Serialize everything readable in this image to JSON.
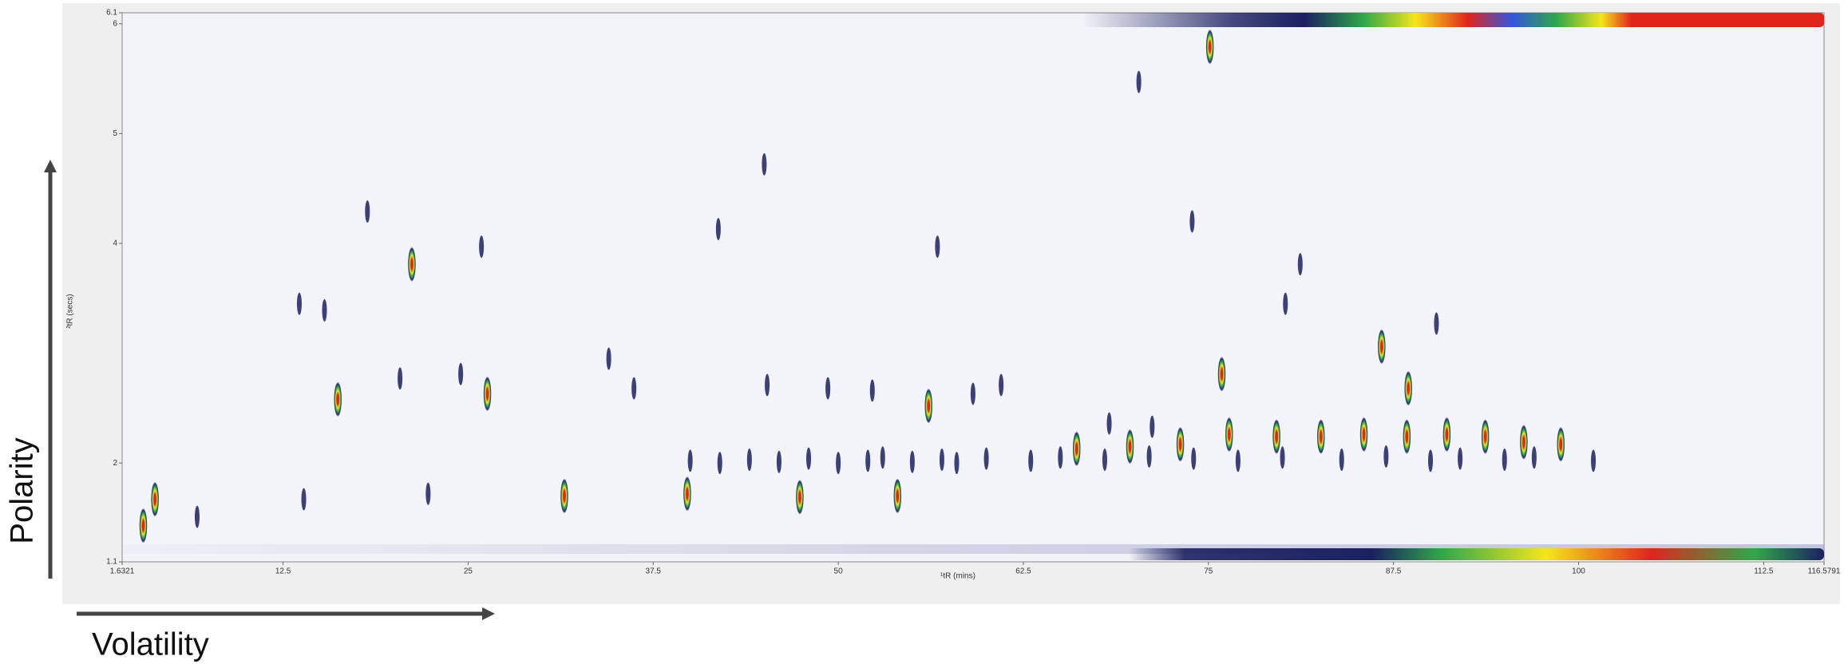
{
  "chart_data": {
    "type": "scatter",
    "x_label": "¹tR (mins)",
    "y_label": "²tR (secs)",
    "annotations": [
      "Polarity",
      "Volatility"
    ],
    "xlim": [
      1.6321,
      116.5791
    ],
    "ylim": [
      1.1,
      6.1
    ],
    "xticks": [
      1.6321,
      12.5,
      25,
      37.5,
      50,
      62.5,
      75,
      87.5,
      100,
      112.5,
      116.5791
    ],
    "yticks": [
      1.1,
      2,
      4,
      5,
      6,
      6.1
    ],
    "grid": false,
    "series": [
      {
        "color": "#1b2060",
        "x": [
          13.6,
          15.3,
          18.2,
          22.3,
          25.9,
          34.5,
          45.0,
          70.3,
          61.0,
          73.9,
          81.2,
          90.4,
          80.2,
          56.7,
          41.9,
          13.9,
          6.7,
          36.2,
          45.2,
          49.3,
          52.3,
          59.1,
          24.5,
          20.4,
          68.3,
          71.2,
          40,
          42,
          44,
          46,
          48,
          50,
          52,
          53,
          55,
          57,
          58,
          60,
          63,
          65,
          68,
          71,
          74,
          77,
          80,
          84,
          87,
          90,
          92,
          95,
          97,
          101
        ],
        "values": [
          3.45,
          3.39,
          4.29,
          1.72,
          3.97,
          2.95,
          4.72,
          5.47,
          2.71,
          4.2,
          3.81,
          3.27,
          3.45,
          3.97,
          4.13,
          1.67,
          1.51,
          2.68,
          2.71,
          2.68,
          2.66,
          2.63,
          2.81,
          2.77,
          2.36,
          2.33,
          2.02,
          2.0,
          2.03,
          2.01,
          2.04,
          2.0,
          2.02,
          2.05,
          2.01,
          2.03,
          2.0,
          2.04,
          2.02,
          2.05,
          2.03,
          2.06,
          2.04,
          2.02,
          2.05,
          2.03,
          2.06,
          2.02,
          2.04,
          2.03,
          2.05,
          2.02
        ]
      },
      {
        "color": "#e0261b",
        "x": [
          3.06,
          3.85,
          16.2,
          21.2,
          26.3,
          31.5,
          39.8,
          47.4,
          54.0,
          56.1,
          75.1,
          75.9,
          76.4,
          79.6,
          82.6,
          85.5,
          86.7,
          88.5,
          88.4,
          91.1,
          93.7,
          96.3,
          98.8,
          73.1,
          69.7,
          66.1
        ],
        "values": [
          1.43,
          1.67,
          2.58,
          3.81,
          2.63,
          1.7,
          1.72,
          1.69,
          1.7,
          2.52,
          5.79,
          2.81,
          2.26,
          2.24,
          2.24,
          2.26,
          3.06,
          2.68,
          2.24,
          2.26,
          2.24,
          2.19,
          2.17,
          2.17,
          2.15,
          2.13
        ]
      }
    ]
  }
}
